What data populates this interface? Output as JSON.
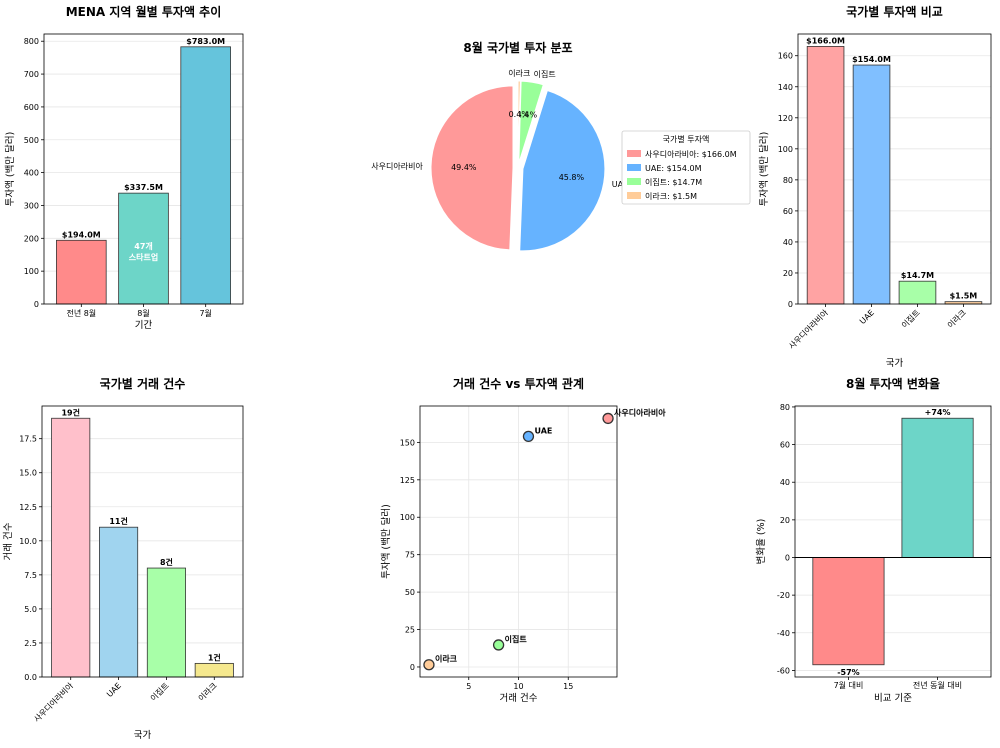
{
  "charts": [
    {
      "id": "c1",
      "chart_data": {
        "type": "bar",
        "title": "MENA 지역 월별 투자액 추이",
        "xlabel": "기간",
        "ylabel": "투자액 (백만 달러)",
        "categories": [
          "전년 8월",
          "8월",
          "7월"
        ],
        "values": [
          194.0,
          337.5,
          783.0
        ],
        "data_labels": [
          "$194.0M",
          "$337.5M",
          "$783.0M"
        ],
        "colors": [
          "#ff8a8a",
          "#6dd5c8",
          "#65c4dc"
        ],
        "inner_annotation": {
          "index": 1,
          "lines": [
            "47개",
            "스타트업"
          ]
        },
        "ylim": [
          0,
          822
        ],
        "yticks": [
          0,
          100,
          200,
          300,
          400,
          500,
          600,
          700,
          800
        ],
        "grid": true
      }
    },
    {
      "id": "c2",
      "chart_data": {
        "type": "pie",
        "title": "8월 국가별 투자 분포",
        "labels": [
          "사우디아라비아",
          "UAE",
          "이집트",
          "이라크"
        ],
        "values": [
          166.0,
          154.0,
          14.7,
          1.5
        ],
        "pct_labels": [
          "49.4%",
          "45.8%",
          "4.4%",
          "0.4%"
        ],
        "colors": [
          "#ff9999",
          "#66b3ff",
          "#99ff99",
          "#ffcc99"
        ],
        "legend": {
          "title": "국가별 투자액",
          "placement": "right",
          "entries": [
            "사우디아라비아: $166.0M",
            "UAE: $154.0M",
            "이집트: $14.7M",
            "이라크: $1.5M"
          ]
        }
      }
    },
    {
      "id": "c3",
      "chart_data": {
        "type": "bar",
        "title": "국가별 투자액 비교",
        "xlabel": "국가",
        "ylabel": "투자액 (백만 달러)",
        "categories": [
          "사우디아라비아",
          "UAE",
          "이집트",
          "이라크"
        ],
        "values": [
          166.0,
          154.0,
          14.7,
          1.5
        ],
        "data_labels": [
          "$166.0M",
          "$154.0M",
          "$14.7M",
          "$1.5M"
        ],
        "colors": [
          "#ffa3a3",
          "#80bfff",
          "#a8ffa8",
          "#ffd0a0"
        ],
        "ylim": [
          0,
          174
        ],
        "yticks": [
          0,
          20,
          40,
          60,
          80,
          100,
          120,
          140,
          160
        ],
        "rotate_xticks": true,
        "grid": true
      }
    },
    {
      "id": "c4",
      "chart_data": {
        "type": "bar",
        "title": "국가별 거래 건수",
        "xlabel": "국가",
        "ylabel": "거래 건수",
        "categories": [
          "사우디아라비아",
          "UAE",
          "이집트",
          "이라크"
        ],
        "values": [
          19,
          11,
          8,
          1
        ],
        "data_labels": [
          "19건",
          "11건",
          "8건",
          "1건"
        ],
        "colors": [
          "#ffc0cb",
          "#a0d4ef",
          "#a8ffa8",
          "#f5e88e"
        ],
        "ylim": [
          0,
          19.9
        ],
        "yticks": [
          0.0,
          2.5,
          5.0,
          7.5,
          10.0,
          12.5,
          15.0,
          17.5
        ],
        "ytick_labels": [
          "0.0",
          "2.5",
          "5.0",
          "7.5",
          "10.0",
          "12.5",
          "15.0",
          "17.5"
        ],
        "rotate_xticks": true,
        "grid": true
      }
    },
    {
      "id": "c5",
      "chart_data": {
        "type": "scatter",
        "title": "거래 건수 vs 투자액 관계",
        "xlabel": "거래 건수",
        "ylabel": "투자액 (백만 달러)",
        "points": [
          {
            "label": "사우디아라비아",
            "x": 19,
            "y": 166.0,
            "color": "#ff9999"
          },
          {
            "label": "UAE",
            "x": 11,
            "y": 154.0,
            "color": "#66b3ff"
          },
          {
            "label": "이집트",
            "x": 8,
            "y": 14.7,
            "color": "#99ff99"
          },
          {
            "label": "이라크",
            "x": 1,
            "y": 1.5,
            "color": "#ffcc99"
          }
        ],
        "xlim": [
          0.1,
          19.9
        ],
        "ylim": [
          -6.7,
          174.3
        ],
        "xticks": [
          5,
          10,
          15
        ],
        "yticks": [
          0,
          25,
          50,
          75,
          100,
          125,
          150
        ],
        "grid": true
      }
    },
    {
      "id": "c6",
      "chart_data": {
        "type": "bar",
        "title": "8월 투자액 변화율",
        "xlabel": "비교 기준",
        "ylabel": "변화율 (%)",
        "categories": [
          "7월 대비",
          "전년 동월 대비"
        ],
        "values": [
          -57,
          74
        ],
        "data_labels": [
          "-57%",
          "+74%"
        ],
        "colors": [
          "#ff8a8a",
          "#6dd5c8"
        ],
        "ylim": [
          -63.5,
          80.5
        ],
        "yticks": [
          -60,
          -40,
          -20,
          0,
          20,
          40,
          60,
          80
        ],
        "grid": true
      }
    }
  ]
}
